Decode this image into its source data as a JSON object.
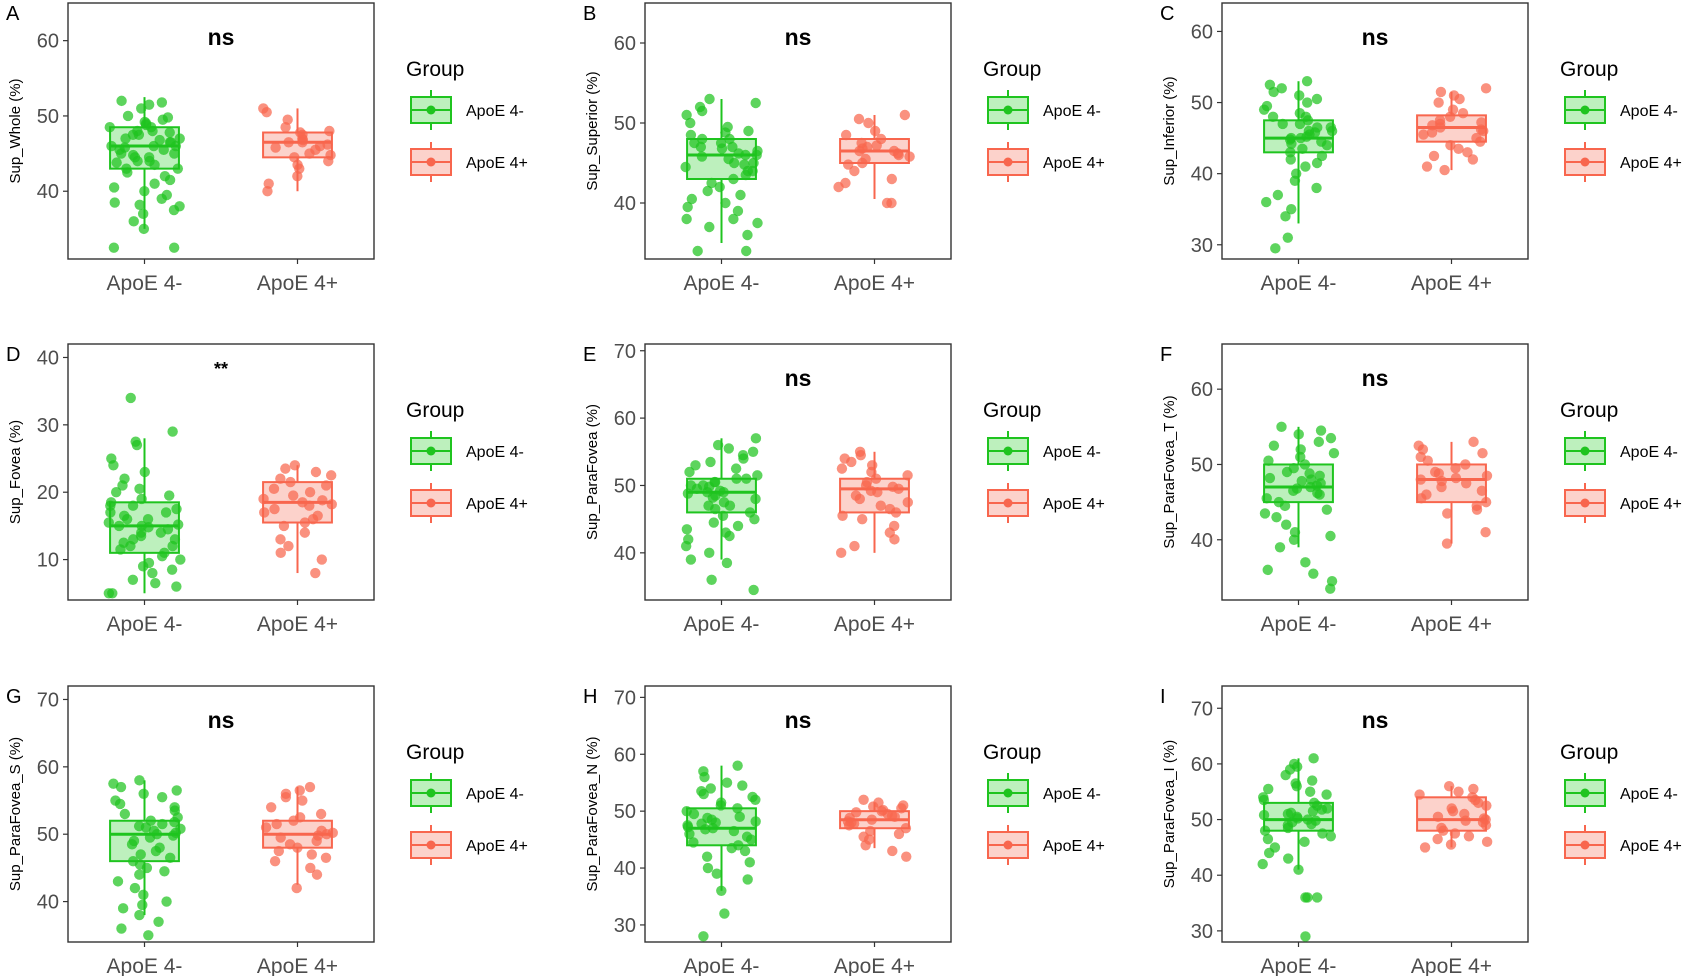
{
  "colors": {
    "neg": "#1fc41f",
    "pos": "#f8664e",
    "negFill": "#bdf0bd",
    "posFill": "#fcd2cb",
    "axis": "#333333",
    "text": "#4d4d4d"
  },
  "groups": [
    "ApoE 4-",
    "ApoE 4+"
  ],
  "legend": {
    "title": "Group",
    "items": [
      "ApoE 4-",
      "ApoE 4+"
    ]
  },
  "chart_data": [
    {
      "type": "box",
      "panel": "A",
      "title": "ns",
      "ylabel": "Sup_Whole (%)",
      "ylim": [
        31,
        65
      ],
      "yticks": [
        40,
        50,
        60
      ],
      "xlabel": "",
      "categories": [
        "ApoE 4-",
        "ApoE 4+"
      ],
      "series": [
        {
          "name": "ApoE 4-",
          "q1": 43,
          "median": 46,
          "q3": 48.5,
          "whisker_low": 35,
          "whisker_high": 52.5,
          "points": [
            52,
            51.8,
            51.5,
            51,
            50,
            49.8,
            49.5,
            49.2,
            49,
            48.8,
            48.5,
            48.5,
            48,
            48,
            47.8,
            47.5,
            47.5,
            47,
            47,
            46.8,
            46.5,
            46.5,
            46,
            46,
            46,
            45.8,
            45.5,
            45.5,
            45,
            45,
            44.8,
            44.5,
            44.5,
            44,
            44,
            43.8,
            43.5,
            43,
            43,
            42.5,
            42,
            41.5,
            41,
            40.5,
            40,
            39.5,
            39,
            38.5,
            38.2,
            38,
            37.5,
            37,
            36,
            35,
            32.5,
            32.5
          ]
        },
        {
          "name": "ApoE 4+",
          "q1": 44.5,
          "median": 46.5,
          "q3": 47.8,
          "whisker_low": 40,
          "whisker_high": 51,
          "points": [
            51,
            50.5,
            49.5,
            48.5,
            48,
            47.8,
            47.5,
            47,
            46.8,
            46.5,
            46.5,
            46.2,
            46,
            45.8,
            45.5,
            45,
            44.8,
            44.5,
            44,
            43.5,
            43,
            42,
            41,
            40
          ]
        }
      ]
    },
    {
      "type": "box",
      "panel": "B",
      "title": "ns",
      "ylabel": "Sup_Superior (%)",
      "ylim": [
        33,
        65
      ],
      "yticks": [
        40,
        50,
        60
      ],
      "xlabel": "",
      "categories": [
        "ApoE 4-",
        "ApoE 4+"
      ],
      "series": [
        {
          "name": "ApoE 4-",
          "q1": 43,
          "median": 46,
          "q3": 48,
          "whisker_low": 35,
          "whisker_high": 53,
          "points": [
            53,
            52.5,
            52,
            51.5,
            51,
            50,
            49.5,
            49,
            48.8,
            48.5,
            48,
            48,
            47.5,
            47.5,
            47,
            47,
            46.8,
            46.5,
            46.2,
            46,
            46,
            45.8,
            45.5,
            45,
            45,
            44.8,
            44.5,
            44,
            44,
            43.5,
            43,
            42.5,
            42,
            41.5,
            41,
            40.5,
            40,
            39.5,
            39,
            38,
            38,
            37.5,
            37,
            36,
            34,
            34
          ]
        },
        {
          "name": "ApoE 4+",
          "q1": 45,
          "median": 46.5,
          "q3": 48,
          "whisker_low": 40.5,
          "whisker_high": 51,
          "points": [
            51,
            50.5,
            50,
            49,
            48.5,
            48,
            47.5,
            47.2,
            47,
            46.8,
            46.5,
            46.5,
            46.2,
            46,
            45.8,
            45.5,
            45,
            44.8,
            44,
            43,
            42.5,
            42,
            40,
            40
          ]
        }
      ]
    },
    {
      "type": "box",
      "panel": "C",
      "title": "ns",
      "ylabel": "Sup_Inferior (%)",
      "ylim": [
        28,
        64
      ],
      "yticks": [
        30,
        40,
        50,
        60
      ],
      "xlabel": "",
      "categories": [
        "ApoE 4-",
        "ApoE 4+"
      ],
      "series": [
        {
          "name": "ApoE 4-",
          "q1": 43,
          "median": 45,
          "q3": 47.5,
          "whisker_low": 33,
          "whisker_high": 53,
          "points": [
            53,
            52.5,
            52,
            51.5,
            51,
            50.5,
            50,
            49.5,
            49,
            48.5,
            48,
            48,
            47.5,
            47,
            47,
            46.5,
            46.5,
            46,
            46,
            45.8,
            45.5,
            45.2,
            45,
            45,
            44.8,
            44.5,
            44.2,
            44,
            43.5,
            43,
            42.5,
            42,
            41.5,
            41,
            40,
            39,
            38,
            37,
            36,
            35,
            34,
            31,
            29.5
          ]
        },
        {
          "name": "ApoE 4+",
          "q1": 44.5,
          "median": 46.5,
          "q3": 48.2,
          "whisker_low": 40.5,
          "whisker_high": 51.5,
          "points": [
            52,
            51.5,
            51,
            50.5,
            50,
            49,
            48.5,
            48,
            47.5,
            47.2,
            47,
            46.8,
            46.5,
            46.2,
            46,
            45.8,
            45.5,
            45,
            44.5,
            44,
            43.5,
            43,
            42.5,
            42,
            41,
            40.5
          ]
        }
      ]
    },
    {
      "type": "box",
      "panel": "D",
      "title": "**",
      "ylabel": "Sup_Fovea (%)",
      "ylim": [
        4,
        42
      ],
      "yticks": [
        10,
        20,
        30,
        40
      ],
      "xlabel": "",
      "categories": [
        "ApoE 4-",
        "ApoE 4+"
      ],
      "series": [
        {
          "name": "ApoE 4-",
          "q1": 11,
          "median": 15,
          "q3": 18.5,
          "whisker_low": 5,
          "whisker_high": 28,
          "points": [
            34,
            29,
            27.5,
            27,
            25,
            24,
            23,
            22,
            21,
            20.5,
            20,
            19.5,
            19,
            18.5,
            18,
            18,
            17.5,
            17,
            17,
            16.5,
            16,
            16,
            15.5,
            15.2,
            15,
            15,
            14.8,
            14.5,
            14,
            14,
            13.5,
            13,
            13,
            12.5,
            12,
            12,
            11.5,
            11,
            10.5,
            10,
            9.5,
            9,
            8.5,
            8,
            7,
            6.5,
            6,
            5,
            5
          ]
        },
        {
          "name": "ApoE 4+",
          "q1": 15.5,
          "median": 18.5,
          "q3": 21.5,
          "whisker_low": 8,
          "whisker_high": 24,
          "points": [
            24,
            23.5,
            23,
            22.5,
            22,
            21.5,
            21,
            20.5,
            20,
            19.5,
            19,
            18.8,
            18.5,
            18.2,
            18,
            17.5,
            17,
            16.5,
            16,
            15.5,
            15,
            14,
            13,
            12,
            11,
            10,
            8
          ]
        }
      ]
    },
    {
      "type": "box",
      "panel": "E",
      "title": "ns",
      "ylabel": "Sup_ParaFovea (%)",
      "ylim": [
        33,
        71
      ],
      "yticks": [
        40,
        50,
        60,
        70
      ],
      "xlabel": "",
      "categories": [
        "ApoE 4-",
        "ApoE 4+"
      ],
      "series": [
        {
          "name": "ApoE 4-",
          "q1": 46,
          "median": 49,
          "q3": 51,
          "whisker_low": 39,
          "whisker_high": 57,
          "points": [
            57,
            56,
            55.5,
            55,
            54.5,
            54,
            53.5,
            53,
            52.5,
            52,
            51.5,
            51,
            51,
            50.5,
            50.5,
            50,
            50,
            49.8,
            49.5,
            49.2,
            49,
            49,
            48.8,
            48.5,
            48.2,
            48,
            47.5,
            47,
            47,
            46.5,
            46,
            45.5,
            45,
            44.5,
            44,
            43.5,
            43,
            42.5,
            42,
            41,
            40,
            39,
            38.5,
            36,
            34.5
          ]
        },
        {
          "name": "ApoE 4+",
          "q1": 46,
          "median": 49.5,
          "q3": 51,
          "whisker_low": 40,
          "whisker_high": 55,
          "points": [
            55,
            54.5,
            54,
            53.5,
            53,
            52.5,
            52,
            51.5,
            51,
            50.5,
            50,
            49.8,
            49.5,
            49.2,
            49,
            48.5,
            48,
            47.5,
            47,
            46.5,
            46,
            45.5,
            45,
            44,
            43,
            42,
            41,
            40
          ]
        }
      ]
    },
    {
      "type": "box",
      "panel": "F",
      "title": "ns",
      "ylabel": "Sup_ParaFovea_T (%)",
      "ylim": [
        32,
        66
      ],
      "yticks": [
        40,
        50,
        60
      ],
      "xlabel": "",
      "categories": [
        "ApoE 4-",
        "ApoE 4+"
      ],
      "series": [
        {
          "name": "ApoE 4-",
          "q1": 45,
          "median": 47,
          "q3": 50,
          "whisker_low": 39,
          "whisker_high": 55,
          "points": [
            55,
            54.5,
            54,
            53.5,
            53,
            52.5,
            52,
            51.5,
            51,
            50.5,
            50,
            49.5,
            49,
            48.8,
            48.5,
            48.2,
            48,
            47.8,
            47.5,
            47.2,
            47,
            46.8,
            46.5,
            46.2,
            46,
            45.5,
            45,
            44.5,
            44,
            43.5,
            43,
            42,
            41,
            40.5,
            40,
            39,
            37,
            36,
            35.5,
            34.5,
            33.5
          ]
        },
        {
          "name": "ApoE 4+",
          "q1": 45,
          "median": 48,
          "q3": 50,
          "whisker_low": 39.5,
          "whisker_high": 53,
          "points": [
            53,
            52.5,
            52,
            51.5,
            51,
            50.5,
            50,
            49.5,
            49,
            48.8,
            48.5,
            48.2,
            48,
            47.8,
            47.5,
            47,
            46.5,
            46,
            45.5,
            45,
            44.5,
            44,
            43.5,
            41,
            39.5
          ]
        }
      ]
    },
    {
      "type": "box",
      "panel": "G",
      "title": "ns",
      "ylabel": "Sup_ParaFovea_S (%)",
      "ylim": [
        34,
        72
      ],
      "yticks": [
        40,
        50,
        60,
        70
      ],
      "xlabel": "",
      "categories": [
        "ApoE 4-",
        "ApoE 4+"
      ],
      "series": [
        {
          "name": "ApoE 4-",
          "q1": 46,
          "median": 50,
          "q3": 52,
          "whisker_low": 38,
          "whisker_high": 58,
          "points": [
            58,
            57.5,
            57,
            56.5,
            56,
            55.5,
            55,
            54.5,
            54,
            53.5,
            53,
            52.5,
            52,
            51.8,
            51.5,
            51.2,
            51,
            50.8,
            50.5,
            50.2,
            50,
            49.8,
            49.5,
            49,
            48.5,
            48,
            47.5,
            47,
            46.5,
            46,
            45.5,
            45,
            44.5,
            44,
            43,
            42,
            41,
            40,
            39.5,
            39,
            38,
            37,
            36,
            35
          ]
        },
        {
          "name": "ApoE 4+",
          "q1": 48,
          "median": 50,
          "q3": 52,
          "whisker_low": 42.5,
          "whisker_high": 57,
          "points": [
            57,
            56.5,
            56,
            55.5,
            55,
            54,
            53,
            52.5,
            52,
            51.5,
            51,
            50.5,
            50.2,
            50,
            49.8,
            49.5,
            49,
            48.5,
            48,
            47.5,
            47,
            46.5,
            46,
            45,
            44,
            42
          ]
        }
      ]
    },
    {
      "type": "box",
      "panel": "H",
      "title": "ns",
      "ylabel": "Sup_ParaFovea_N (%)",
      "ylim": [
        27,
        72
      ],
      "yticks": [
        30,
        40,
        50,
        60,
        70
      ],
      "xlabel": "",
      "categories": [
        "ApoE 4-",
        "ApoE 4+"
      ],
      "series": [
        {
          "name": "ApoE 4-",
          "q1": 44,
          "median": 47,
          "q3": 50.5,
          "whisker_low": 36,
          "whisker_high": 58,
          "points": [
            58,
            57,
            56,
            55,
            54.5,
            54,
            53.5,
            53,
            52.5,
            52,
            51.5,
            51,
            50.5,
            50,
            49.5,
            49,
            48.8,
            48.5,
            48.2,
            48,
            47.8,
            47.5,
            47.2,
            47,
            46.8,
            46.5,
            46,
            45.5,
            45,
            44.5,
            44,
            43.5,
            43,
            42,
            41,
            40,
            39,
            38,
            36,
            32,
            28
          ]
        },
        {
          "name": "ApoE 4+",
          "q1": 47,
          "median": 48.5,
          "q3": 50,
          "whisker_low": 43.5,
          "whisker_high": 51.5,
          "points": [
            52,
            51.5,
            51,
            50.8,
            50.5,
            50.2,
            50,
            49.8,
            49.5,
            49.2,
            49,
            48.8,
            48.5,
            48.2,
            48,
            47.8,
            47.5,
            47,
            46.5,
            46,
            45.5,
            45,
            44,
            43,
            42
          ]
        }
      ]
    },
    {
      "type": "box",
      "panel": "I",
      "title": "ns",
      "ylabel": "Sup_ParaFovea_I (%)",
      "ylim": [
        28,
        74
      ],
      "yticks": [
        30,
        40,
        50,
        60,
        70
      ],
      "xlabel": "",
      "categories": [
        "ApoE 4-",
        "ApoE 4+"
      ],
      "series": [
        {
          "name": "ApoE 4-",
          "q1": 48,
          "median": 50,
          "q3": 53,
          "whisker_low": 41,
          "whisker_high": 61,
          "points": [
            61,
            60,
            59.5,
            59,
            58,
            57,
            56.5,
            56,
            55.5,
            55,
            54.5,
            54,
            53.5,
            53,
            52.5,
            52,
            51.8,
            51.5,
            51.2,
            51,
            50.8,
            50.5,
            50.2,
            50,
            49.8,
            49.5,
            49.2,
            49,
            48.5,
            48,
            47.5,
            47,
            46.5,
            46,
            45,
            44,
            43,
            42,
            41,
            36,
            36,
            36,
            29
          ]
        },
        {
          "name": "ApoE 4+",
          "q1": 48,
          "median": 50,
          "q3": 54,
          "whisker_low": 45,
          "whisker_high": 56,
          "points": [
            56,
            55.5,
            55,
            54.5,
            54,
            53.5,
            53,
            52.5,
            52,
            51.5,
            51,
            50.5,
            50.2,
            50,
            49.8,
            49.5,
            49,
            48.5,
            48,
            47.5,
            47,
            46.5,
            46,
            45.5,
            45
          ]
        }
      ]
    }
  ]
}
